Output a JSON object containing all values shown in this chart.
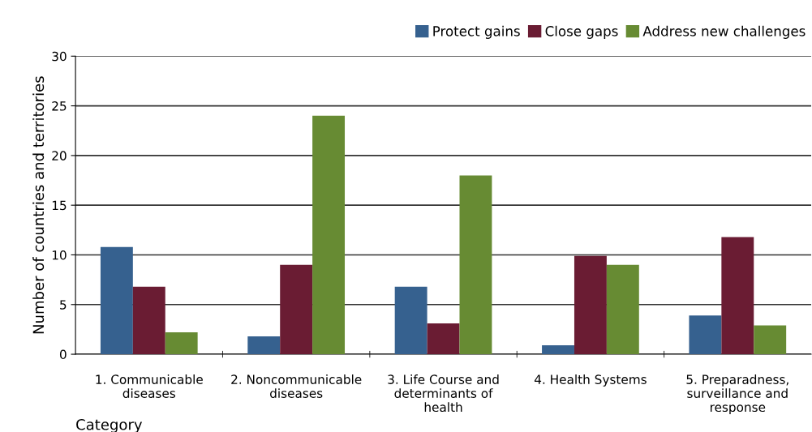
{
  "chart_data": {
    "type": "bar",
    "xlabel": "Category",
    "ylabel": "Number of countries and territories",
    "categories": [
      "1. Communicable diseases",
      "2. Noncommunicable diseases",
      "3. Life Course and determinants of health",
      "4. Health Systems",
      "5. Preparadness, surveillance and response"
    ],
    "series": [
      {
        "name": "Protect gains",
        "color": "#36618f",
        "values": [
          10.8,
          1.8,
          6.8,
          0.9,
          3.9
        ]
      },
      {
        "name": "Close gaps",
        "color": "#6a1c33",
        "values": [
          6.8,
          9,
          3.1,
          9.9,
          11.8
        ]
      },
      {
        "name": "Address new challenges",
        "color": "#678b33",
        "values": [
          2.2,
          24,
          18,
          9,
          2.9
        ]
      }
    ],
    "ylim": [
      0,
      30
    ],
    "yticks": [
      0,
      5,
      10,
      15,
      20,
      25,
      30
    ],
    "grid": "y",
    "legend": "top right"
  }
}
